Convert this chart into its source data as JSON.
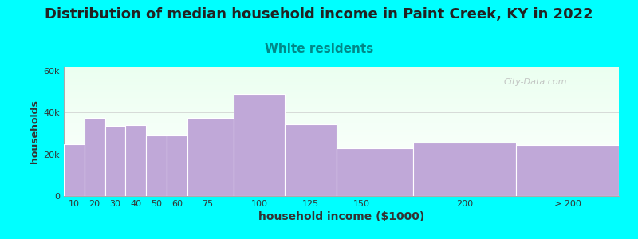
{
  "title": "Distribution of median household income in Paint Creek, KY in 2022",
  "subtitle": "White residents",
  "xlabel": "household income ($1000)",
  "ylabel": "households",
  "background_color": "#00FFFF",
  "bar_color": "#C0A8D8",
  "bar_edge_color": "#ffffff",
  "title_fontsize": 13,
  "subtitle_fontsize": 11,
  "subtitle_color": "#008888",
  "tick_labels": [
    "10",
    "20",
    "30",
    "40",
    "50",
    "60",
    "75",
    "100",
    "125",
    "150",
    "200",
    "> 200"
  ],
  "values": [
    25000,
    37500,
    33500,
    34000,
    29000,
    29000,
    37500,
    49000,
    34500,
    23000,
    25500,
    24500
  ],
  "bar_lefts": [
    5,
    15,
    25,
    35,
    45,
    55,
    65,
    87.5,
    112.5,
    137.5,
    175,
    225
  ],
  "bar_widths": [
    10,
    10,
    10,
    10,
    10,
    10,
    22.5,
    25,
    25,
    37.5,
    50,
    50
  ],
  "tick_positions": [
    10,
    20,
    30,
    40,
    50,
    60,
    75,
    100,
    125,
    150,
    200,
    250
  ],
  "ytick_labels": [
    "0",
    "20k",
    "40k",
    "60k"
  ],
  "ytick_values": [
    0,
    20000,
    40000,
    60000
  ],
  "ylim": [
    0,
    62000
  ],
  "xlim": [
    5,
    275
  ],
  "watermark": "City-Data.com"
}
